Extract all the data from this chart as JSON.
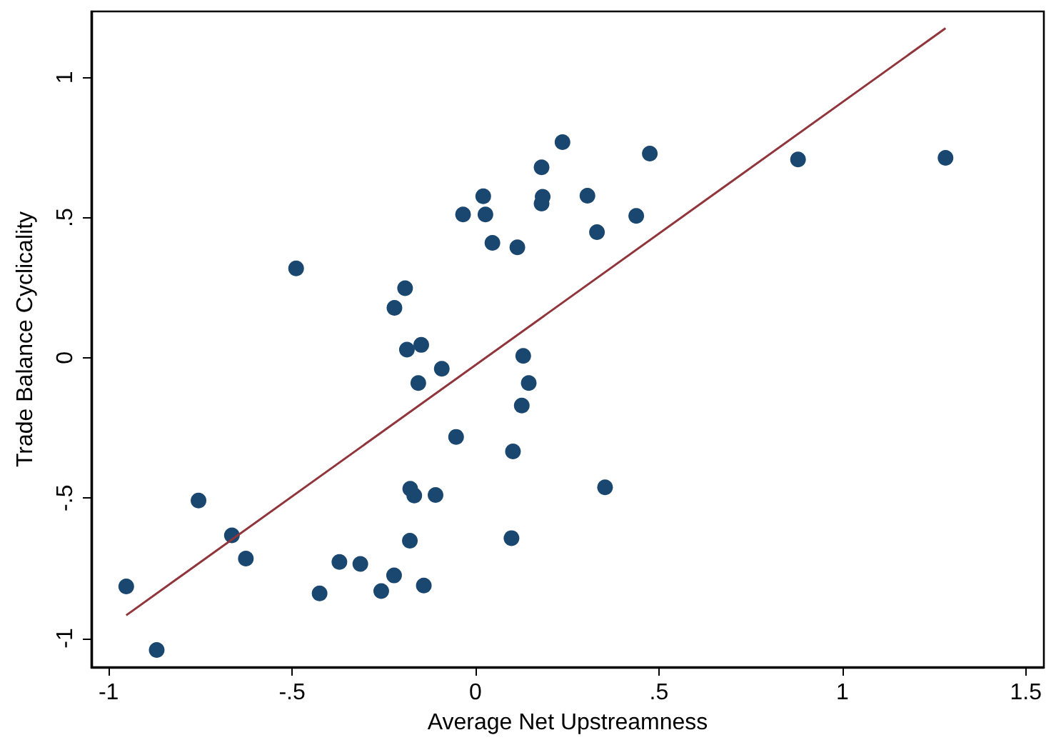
{
  "chart_data": {
    "type": "scatter",
    "xlabel": "Average Net Upstreamness",
    "ylabel": "Trade Balance Cyclicality",
    "xlim": [
      -1.047,
      1.549
    ],
    "ylim": [
      -1.103,
      1.235
    ],
    "xticks": [
      -1,
      {
        "value": -0.5,
        "label": "-.5"
      },
      0,
      {
        "value": 0.5,
        "label": ".5"
      },
      1,
      1.5
    ],
    "yticks": [
      -1,
      {
        "value": -0.5,
        "label": "-.5"
      },
      0,
      {
        "value": 0.5,
        "label": ".5"
      },
      1
    ],
    "grid": false,
    "series": [
      {
        "type": "scatter",
        "marker": "circle",
        "color": "#1a476f",
        "x": [
          -0.952,
          -0.869,
          -0.755,
          -0.664,
          -0.626,
          -0.489,
          -0.425,
          -0.371,
          -0.314,
          -0.257,
          -0.222,
          -0.221,
          -0.192,
          -0.187,
          -0.148,
          -0.156,
          -0.092,
          -0.178,
          -0.167,
          -0.109,
          -0.179,
          -0.141,
          -0.053,
          -0.034,
          0.021,
          0.027,
          0.046,
          0.114,
          0.102,
          0.098,
          0.13,
          0.145,
          0.126,
          0.18,
          0.183,
          0.18,
          0.237,
          0.305,
          0.331,
          0.353,
          0.438,
          0.475,
          0.879,
          1.281
        ],
        "values": [
          -0.815,
          -1.042,
          -0.509,
          -0.633,
          -0.716,
          0.319,
          -0.84,
          -0.728,
          -0.735,
          -0.832,
          -0.776,
          0.178,
          0.248,
          0.029,
          0.046,
          -0.09,
          -0.039,
          -0.467,
          -0.491,
          -0.489,
          -0.652,
          -0.812,
          -0.282,
          0.511,
          0.576,
          0.511,
          0.41,
          0.394,
          -0.334,
          -0.643,
          0.007,
          -0.09,
          -0.17,
          0.679,
          0.574,
          0.55,
          0.769,
          0.578,
          0.448,
          -0.462,
          0.506,
          0.728,
          0.707,
          0.713
        ]
      },
      {
        "type": "line",
        "marker": "none",
        "line_style": "solid",
        "color": "#90353b",
        "x": [
          -0.952,
          1.281
        ],
        "values": [
          -0.918,
          1.175
        ]
      }
    ]
  }
}
